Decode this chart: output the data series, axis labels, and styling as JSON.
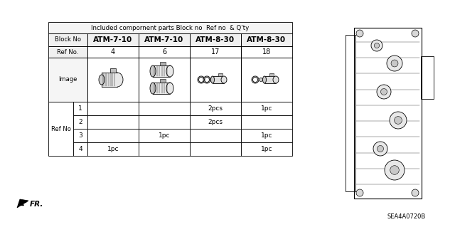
{
  "title": "Included compornent parts Block no  Ref no  & Q'ty",
  "block_headers": [
    "Block No",
    "ATM-7-10",
    "ATM-7-10",
    "ATM-8-30",
    "ATM-8-30"
  ],
  "ref_no_row": [
    "Ref No.",
    "4",
    "6",
    "17",
    "18"
  ],
  "image_row_label": "Image",
  "ref_no_label": "Ref No",
  "ref_rows": [
    [
      "1",
      "",
      "",
      "2pcs",
      "1pc"
    ],
    [
      "2",
      "",
      "",
      "2pcs",
      ""
    ],
    [
      "3",
      "",
      "1pc",
      "",
      "1pc"
    ],
    [
      "4",
      "1pc",
      "",
      "",
      "1pc"
    ]
  ],
  "part_code": "SEA4A0720B",
  "bg_color": "#ffffff",
  "fig_width": 6.4,
  "fig_height": 3.19
}
